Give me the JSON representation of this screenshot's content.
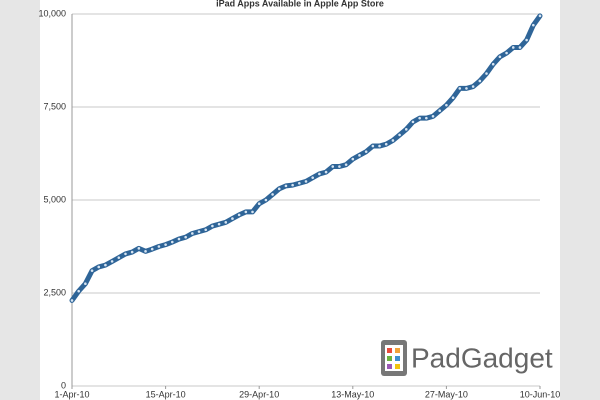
{
  "chart_data": {
    "type": "line",
    "title": "iPad Apps Available in Apple App Store",
    "watermark": "PadGadget",
    "x": [
      "2010-04-01",
      "2010-04-02",
      "2010-04-03",
      "2010-04-04",
      "2010-04-05",
      "2010-04-06",
      "2010-04-07",
      "2010-04-08",
      "2010-04-09",
      "2010-04-10",
      "2010-04-11",
      "2010-04-12",
      "2010-04-13",
      "2010-04-14",
      "2010-04-15",
      "2010-04-16",
      "2010-04-17",
      "2010-04-18",
      "2010-04-19",
      "2010-04-20",
      "2010-04-21",
      "2010-04-22",
      "2010-04-23",
      "2010-04-24",
      "2010-04-25",
      "2010-04-26",
      "2010-04-27",
      "2010-04-28",
      "2010-04-29",
      "2010-04-30",
      "2010-05-01",
      "2010-05-02",
      "2010-05-03",
      "2010-05-04",
      "2010-05-05",
      "2010-05-06",
      "2010-05-07",
      "2010-05-08",
      "2010-05-09",
      "2010-05-10",
      "2010-05-11",
      "2010-05-12",
      "2010-05-13",
      "2010-05-14",
      "2010-05-15",
      "2010-05-16",
      "2010-05-17",
      "2010-05-18",
      "2010-05-19",
      "2010-05-20",
      "2010-05-21",
      "2010-05-22",
      "2010-05-23",
      "2010-05-24",
      "2010-05-25",
      "2010-05-26",
      "2010-05-27",
      "2010-05-28",
      "2010-05-29",
      "2010-05-30",
      "2010-05-31",
      "2010-06-01",
      "2010-06-02",
      "2010-06-03",
      "2010-06-04",
      "2010-06-05",
      "2010-06-06",
      "2010-06-07",
      "2010-06-08",
      "2010-06-09",
      "2010-06-10"
    ],
    "series": [
      {
        "name": "iPad Apps",
        "color": "#2f6598",
        "values": [
          2300,
          2550,
          2750,
          3100,
          3200,
          3250,
          3350,
          3450,
          3550,
          3600,
          3700,
          3620,
          3680,
          3750,
          3800,
          3870,
          3950,
          4000,
          4100,
          4150,
          4200,
          4300,
          4350,
          4400,
          4500,
          4600,
          4680,
          4680,
          4900,
          5000,
          5150,
          5300,
          5380,
          5400,
          5450,
          5500,
          5600,
          5700,
          5750,
          5900,
          5900,
          5950,
          6100,
          6200,
          6300,
          6450,
          6450,
          6500,
          6600,
          6750,
          6900,
          7100,
          7200,
          7200,
          7250,
          7400,
          7550,
          7750,
          8000,
          8000,
          8050,
          8200,
          8400,
          8650,
          8850,
          8950,
          9100,
          9100,
          9300,
          9700,
          9950
        ]
      }
    ],
    "xlim": [
      "2010-04-01",
      "2010-06-10"
    ],
    "xticks": [
      {
        "value": "2010-04-01",
        "label": "1-Apr-10"
      },
      {
        "value": "2010-04-15",
        "label": "15-Apr-10"
      },
      {
        "value": "2010-04-29",
        "label": "29-Apr-10"
      },
      {
        "value": "2010-05-13",
        "label": "13-May-10"
      },
      {
        "value": "2010-05-27",
        "label": "27-May-10"
      },
      {
        "value": "2010-06-10",
        "label": "10-Jun-10"
      }
    ],
    "ylim": [
      0,
      10000
    ],
    "yticks": [
      0,
      {
        "value": 2500,
        "label": "2,500"
      },
      {
        "value": 5000,
        "label": "5,000"
      },
      {
        "value": 7500,
        "label": "7,500"
      },
      {
        "value": 10000,
        "label": "10,000"
      }
    ],
    "grid": true
  }
}
